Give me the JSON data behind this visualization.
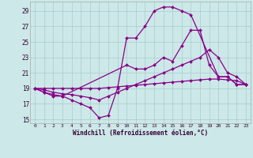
{
  "xlabel": "Windchill (Refroidissement éolien,°C)",
  "bg_color": "#cce8e8",
  "line_color": "#880088",
  "xlim": [
    -0.5,
    23.5
  ],
  "ylim": [
    14.5,
    30.2
  ],
  "xticks": [
    0,
    1,
    2,
    3,
    4,
    5,
    6,
    7,
    8,
    9,
    10,
    11,
    12,
    13,
    14,
    15,
    16,
    17,
    18,
    19,
    20,
    21,
    22,
    23
  ],
  "yticks": [
    15,
    17,
    19,
    21,
    23,
    25,
    27,
    29
  ],
  "series": [
    {
      "x": [
        0,
        1,
        2,
        3,
        4,
        5,
        6,
        7,
        8,
        9,
        10,
        11,
        12,
        13,
        14,
        15,
        16,
        17,
        20,
        21,
        22,
        23
      ],
      "y": [
        19.0,
        18.5,
        18.0,
        18.0,
        17.5,
        17.0,
        16.5,
        15.2,
        15.5,
        19.0,
        25.5,
        25.5,
        27.0,
        29.0,
        29.5,
        29.5,
        29.0,
        28.5,
        20.5,
        20.5,
        19.5,
        19.5
      ]
    },
    {
      "x": [
        0,
        1,
        2,
        3,
        10,
        11,
        12,
        13,
        14,
        15,
        16,
        17,
        18,
        19,
        20,
        21,
        22,
        23
      ],
      "y": [
        19.0,
        18.5,
        18.2,
        18.0,
        22.0,
        21.5,
        21.5,
        22.0,
        23.0,
        22.5,
        24.5,
        26.5,
        26.5,
        22.0,
        20.5,
        20.5,
        19.5,
        19.5
      ]
    },
    {
      "x": [
        0,
        1,
        2,
        3,
        4,
        5,
        6,
        7,
        8,
        9,
        10,
        11,
        12,
        13,
        14,
        15,
        16,
        17,
        18,
        19,
        20,
        21,
        22,
        23
      ],
      "y": [
        19.0,
        18.8,
        18.5,
        18.3,
        18.2,
        18.0,
        17.8,
        17.5,
        18.0,
        18.5,
        19.0,
        19.5,
        20.0,
        20.5,
        21.0,
        21.5,
        22.0,
        22.5,
        23.0,
        24.0,
        23.0,
        21.0,
        20.5,
        19.5
      ]
    },
    {
      "x": [
        0,
        1,
        2,
        3,
        4,
        5,
        6,
        7,
        8,
        9,
        10,
        11,
        12,
        13,
        14,
        15,
        16,
        17,
        18,
        19,
        20,
        21,
        22,
        23
      ],
      "y": [
        19.0,
        19.0,
        19.0,
        19.0,
        19.0,
        19.0,
        19.0,
        19.0,
        19.1,
        19.2,
        19.3,
        19.4,
        19.5,
        19.6,
        19.7,
        19.8,
        19.9,
        20.0,
        20.1,
        20.2,
        20.2,
        20.1,
        20.0,
        19.5
      ]
    }
  ]
}
